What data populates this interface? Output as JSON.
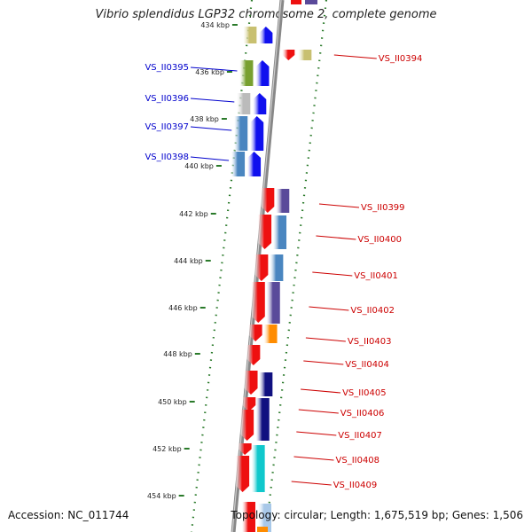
{
  "title": "Vibrio splendidus LGP32 chromosome 2, complete genome",
  "accession": "Accession: NC_011744",
  "summary": "Topology: circular; Length: 1,675,519 bp; Genes: 1,506",
  "ticks": [
    "434 kbp",
    "436 kbp",
    "438 kbp",
    "440 kbp",
    "442 kbp",
    "444 kbp",
    "446 kbp",
    "448 kbp",
    "450 kbp",
    "452 kbp",
    "454 kbp"
  ],
  "colors": {
    "forward_label": "#0000cc",
    "reverse_label": "#cc0000",
    "backbone": "#888888",
    "tick": "#2a7a2a"
  },
  "genes_forward": [
    {
      "label": "",
      "colors": [
        "#c8c070",
        "#1010ee"
      ]
    },
    {
      "label": "VS_II0395",
      "colors": [
        "#78a030",
        "#1010ee"
      ]
    },
    {
      "label": "VS_II0396",
      "colors": [
        "#bbbbbb",
        "#1010ee"
      ]
    },
    {
      "label": "VS_II0397",
      "colors": [
        "#4a86c0",
        "#1010ee"
      ]
    },
    {
      "label": "VS_II0398",
      "colors": [
        "#4a86c0",
        "#1010ee"
      ]
    }
  ],
  "genes_reverse": [
    {
      "label": "VS_II0394",
      "colors": [
        "#ee1010",
        "#c8c070"
      ]
    },
    {
      "label": "VS_II0399",
      "colors": [
        "#ee1010",
        "#5a4a9a"
      ]
    },
    {
      "label": "VS_II0400",
      "colors": [
        "#ee1010",
        "#4a86c0"
      ]
    },
    {
      "label": "VS_II0401",
      "colors": [
        "#ee1010",
        "#4a86c0"
      ]
    },
    {
      "label": "VS_II0402",
      "colors": [
        "#ee1010",
        "#5a4a9a"
      ]
    },
    {
      "label": "VS_II0403",
      "colors": [
        "#ee1010",
        "#ff8c00"
      ]
    },
    {
      "label": "VS_II0404",
      "colors": [
        "#ee1010"
      ]
    },
    {
      "label": "VS_II0405",
      "colors": [
        "#ee1010",
        "#101080"
      ]
    },
    {
      "label": "VS_II0406",
      "colors": [
        "#ee1010",
        "#101080"
      ]
    },
    {
      "label": "VS_II0407",
      "colors": [
        "#ee1010",
        "#101080"
      ]
    },
    {
      "label": "VS_II0408",
      "colors": [
        "#ee1010",
        "#10c8cc"
      ]
    },
    {
      "label": "VS_II0409",
      "colors": [
        "#ee1010",
        "#10c8cc"
      ]
    }
  ]
}
